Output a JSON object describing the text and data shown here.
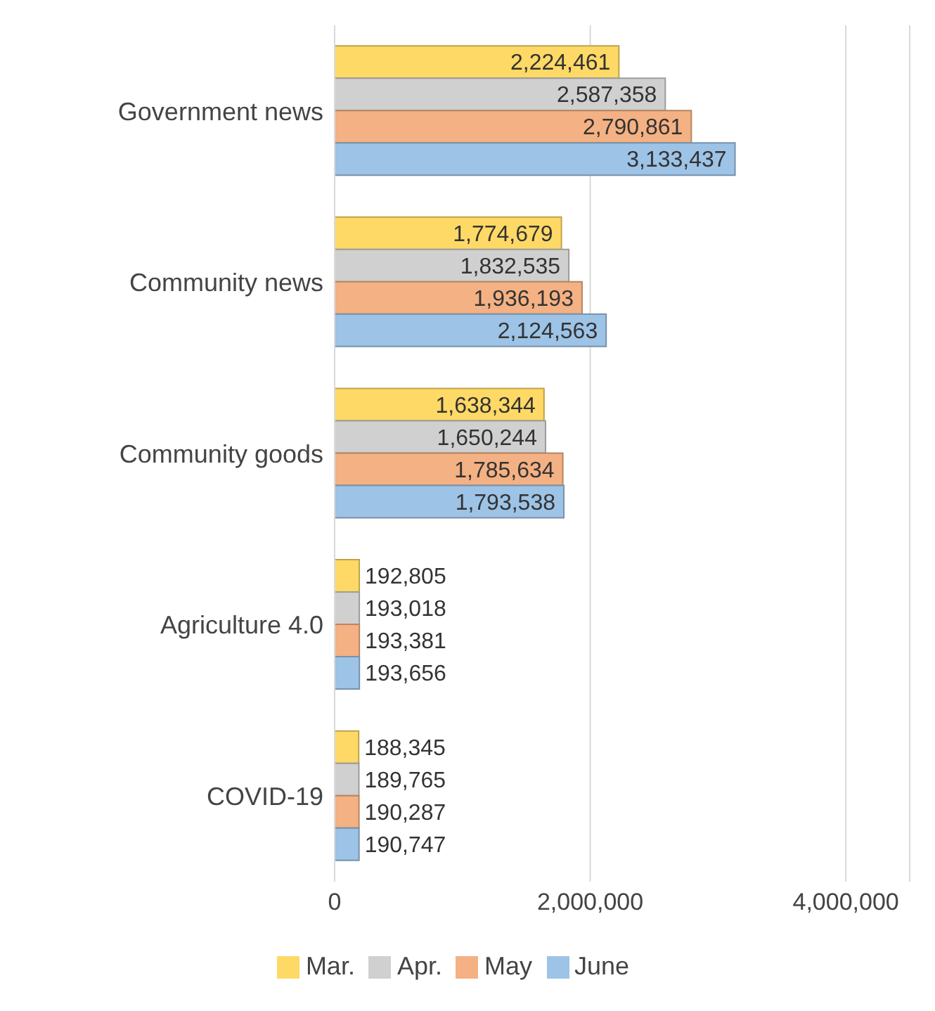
{
  "chart_data": {
    "type": "bar",
    "orientation": "horizontal",
    "categories": [
      "Government news",
      "Community news",
      "Community goods",
      "Agriculture 4.0",
      "COVID-19"
    ],
    "series": [
      {
        "name": "Mar.",
        "color": "#ffd966",
        "values": [
          2224461,
          1774679,
          1638344,
          192805,
          188345
        ],
        "value_labels": [
          "2,224,461",
          "1,774,679",
          "1,638,344",
          "192,805",
          "188,345"
        ]
      },
      {
        "name": "Apr.",
        "color": "#d0d0d0",
        "values": [
          2587358,
          1832535,
          1650244,
          193018,
          189765
        ],
        "value_labels": [
          "2,587,358",
          "1,832,535",
          "1,650,244",
          "193,018",
          "189,765"
        ]
      },
      {
        "name": "May",
        "color": "#f4b183",
        "values": [
          2790861,
          1936193,
          1785634,
          193381,
          190287
        ],
        "value_labels": [
          "2,790,861",
          "1,936,193",
          "1,785,634",
          "193,381",
          "190,287"
        ]
      },
      {
        "name": "June",
        "color": "#9dc3e6",
        "values": [
          3133437,
          2124563,
          1793538,
          193656,
          190747
        ],
        "value_labels": [
          "3,133,437",
          "2,124,563",
          "1,793,538",
          "193,656",
          "190,747"
        ]
      }
    ],
    "xlim": [
      0,
      4500000
    ],
    "xticks": [
      0,
      {
        "value": 2000000,
        "label": "2,000,000"
      },
      {
        "value": 4000000,
        "label": "4,000,000"
      }
    ],
    "grid": "x",
    "legend": "bottom"
  }
}
